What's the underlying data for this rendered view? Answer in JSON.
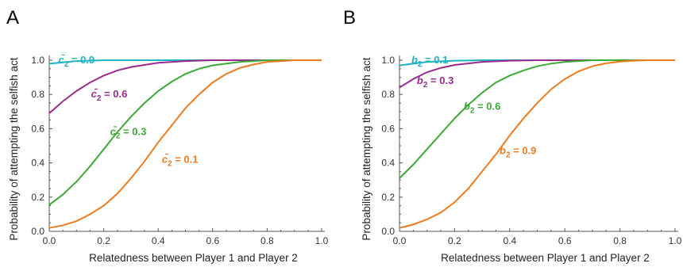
{
  "chart_data": [
    {
      "panel": "A",
      "type": "line",
      "xlabel": "Relatedness between Player 1 and Player 2",
      "ylabel": "Probability of attempting the selfish act",
      "xlim": [
        0,
        1
      ],
      "ylim": [
        0,
        1
      ],
      "xticks": [
        "0.0",
        "0.2",
        "0.4",
        "0.6",
        "0.8",
        "1.0"
      ],
      "yticks": [
        "0.0",
        "0.2",
        "0.4",
        "0.6",
        "0.8",
        "1.0"
      ],
      "grid": false,
      "series": [
        {
          "label_symbol": "c̄",
          "label_sub": "2",
          "label_value": " = 0.9",
          "color": "#1fb2c3",
          "x": [
            0,
            0.1,
            0.2,
            0.3,
            0.4,
            0.5,
            0.6,
            0.7,
            0.8,
            0.9,
            1.0
          ],
          "y": [
            0.98,
            0.995,
            1.0,
            1.0,
            1.0,
            1.0,
            1.0,
            1.0,
            1.0,
            1.0,
            1.0
          ],
          "label_at": [
            0.1,
            1.0
          ]
        },
        {
          "label_symbol": "c̄",
          "label_sub": "2",
          "label_value": " = 0.6",
          "color": "#9a2a8f",
          "x": [
            0,
            0.05,
            0.1,
            0.15,
            0.2,
            0.25,
            0.3,
            0.4,
            0.5,
            0.6,
            0.7,
            0.8,
            0.9,
            1.0
          ],
          "y": [
            0.69,
            0.76,
            0.82,
            0.87,
            0.91,
            0.94,
            0.96,
            0.985,
            0.995,
            1.0,
            1.0,
            1.0,
            1.0,
            1.0
          ],
          "label_at": [
            0.22,
            0.8
          ]
        },
        {
          "label_symbol": "c̄",
          "label_sub": "2",
          "label_value": " = 0.3",
          "color": "#3aaa35",
          "x": [
            0,
            0.05,
            0.1,
            0.15,
            0.2,
            0.25,
            0.3,
            0.35,
            0.4,
            0.45,
            0.5,
            0.55,
            0.6,
            0.7,
            0.8,
            0.9,
            1.0
          ],
          "y": [
            0.155,
            0.215,
            0.29,
            0.38,
            0.48,
            0.58,
            0.67,
            0.75,
            0.82,
            0.875,
            0.92,
            0.95,
            0.97,
            0.99,
            1.0,
            1.0,
            1.0
          ],
          "label_at": [
            0.29,
            0.58
          ]
        },
        {
          "label_symbol": "c̄",
          "label_sub": "2",
          "label_value": " = 0.1",
          "color": "#f07a1c",
          "x": [
            0,
            0.05,
            0.1,
            0.15,
            0.2,
            0.25,
            0.3,
            0.35,
            0.4,
            0.45,
            0.5,
            0.55,
            0.6,
            0.65,
            0.7,
            0.75,
            0.8,
            0.85,
            0.9,
            1.0
          ],
          "y": [
            0.02,
            0.035,
            0.06,
            0.1,
            0.15,
            0.22,
            0.31,
            0.41,
            0.52,
            0.62,
            0.72,
            0.8,
            0.87,
            0.92,
            0.955,
            0.975,
            0.99,
            0.995,
            1.0,
            1.0
          ],
          "label_at": [
            0.48,
            0.42
          ]
        }
      ]
    },
    {
      "panel": "B",
      "type": "line",
      "xlabel": "Relatedness between Player 1 and Player 2",
      "ylabel": "Probability of attempting the selfish act",
      "xlim": [
        0,
        1
      ],
      "ylim": [
        0,
        1
      ],
      "xticks": [
        "0.0",
        "0.2",
        "0.4",
        "0.6",
        "0.8",
        "1.0"
      ],
      "yticks": [
        "0.0",
        "0.2",
        "0.4",
        "0.6",
        "0.8",
        "1.0"
      ],
      "grid": false,
      "series": [
        {
          "label_symbol": "b",
          "label_sub": "2",
          "label_value": " = 0.1",
          "color": "#1fb2c3",
          "x": [
            0,
            0.1,
            0.2,
            0.3,
            0.4,
            0.5,
            0.6,
            0.7,
            0.8,
            0.9,
            1.0
          ],
          "y": [
            0.97,
            0.99,
            0.997,
            1.0,
            1.0,
            1.0,
            1.0,
            1.0,
            1.0,
            1.0,
            1.0
          ],
          "label_at": [
            0.11,
            1.0
          ]
        },
        {
          "label_symbol": "b",
          "label_sub": "2",
          "label_value": " = 0.3",
          "color": "#9a2a8f",
          "x": [
            0,
            0.05,
            0.1,
            0.15,
            0.2,
            0.3,
            0.4,
            0.5,
            0.6,
            0.7,
            0.8,
            0.9,
            1.0
          ],
          "y": [
            0.84,
            0.89,
            0.93,
            0.955,
            0.972,
            0.99,
            0.997,
            1.0,
            1.0,
            1.0,
            1.0,
            1.0,
            1.0
          ],
          "label_at": [
            0.13,
            0.88
          ]
        },
        {
          "label_symbol": "b",
          "label_sub": "2",
          "label_value": " = 0.6",
          "color": "#3aaa35",
          "x": [
            0,
            0.05,
            0.1,
            0.15,
            0.2,
            0.25,
            0.3,
            0.35,
            0.4,
            0.45,
            0.5,
            0.55,
            0.6,
            0.7,
            0.8,
            0.9,
            1.0
          ],
          "y": [
            0.31,
            0.39,
            0.48,
            0.57,
            0.66,
            0.74,
            0.81,
            0.87,
            0.91,
            0.94,
            0.965,
            0.98,
            0.99,
            1.0,
            1.0,
            1.0,
            1.0
          ],
          "label_at": [
            0.3,
            0.73
          ]
        },
        {
          "label_symbol": "b",
          "label_sub": "2",
          "label_value": " = 0.9",
          "color": "#f07a1c",
          "x": [
            0,
            0.05,
            0.1,
            0.15,
            0.2,
            0.25,
            0.3,
            0.35,
            0.4,
            0.45,
            0.5,
            0.55,
            0.6,
            0.65,
            0.7,
            0.75,
            0.8,
            0.85,
            0.9,
            1.0
          ],
          "y": [
            0.02,
            0.04,
            0.07,
            0.11,
            0.17,
            0.25,
            0.35,
            0.45,
            0.56,
            0.66,
            0.75,
            0.83,
            0.89,
            0.935,
            0.965,
            0.982,
            0.992,
            0.997,
            1.0,
            1.0
          ],
          "label_at": [
            0.43,
            0.47
          ]
        }
      ]
    }
  ]
}
